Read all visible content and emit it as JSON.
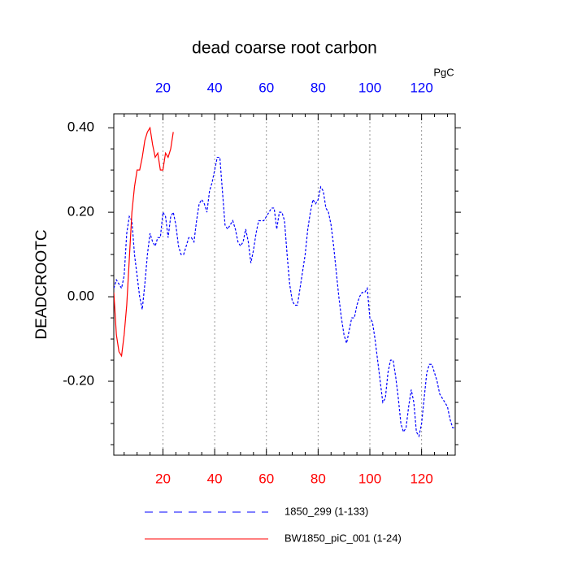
{
  "chart_data": {
    "type": "line",
    "title": "dead coarse root carbon",
    "y_label": "DEADCROOTC",
    "x2_label": "PgC",
    "xlim": [
      1,
      133
    ],
    "ylim": [
      -0.375,
      0.433
    ],
    "xticks": [
      20,
      40,
      60,
      80,
      100,
      120
    ],
    "x2ticks": [
      20,
      40,
      60,
      80,
      100,
      120
    ],
    "xminorticks": [
      5,
      10,
      15,
      25,
      30,
      35,
      45,
      50,
      55,
      65,
      70,
      75,
      85,
      90,
      95,
      105,
      110,
      115,
      125,
      130
    ],
    "yticks": [
      {
        "value": -0.2,
        "label": "-0.20"
      },
      {
        "value": 0,
        "label": "0.00"
      },
      {
        "value": 0.2,
        "label": "0.20"
      },
      {
        "value": 0.4,
        "label": "0.40"
      }
    ],
    "yminorticks": [
      -0.35,
      -0.3,
      -0.25,
      -0.15,
      -0.1,
      -0.05,
      0.05,
      0.1,
      0.15,
      0.25,
      0.3,
      0.35
    ],
    "xtick_color": "#ff0000",
    "x2tick_color": "#0000ff",
    "grid": true,
    "legend": "bottom",
    "series": [
      {
        "name": "1850_299 (1-133)",
        "color": "#0000ff",
        "style": "dashed",
        "x": [
          1,
          2,
          3,
          4,
          5,
          6,
          7,
          8,
          9,
          10,
          11,
          12,
          13,
          14,
          15,
          16,
          17,
          18,
          19,
          20,
          21,
          22,
          23,
          24,
          25,
          26,
          27,
          28,
          29,
          30,
          31,
          32,
          33,
          34,
          35,
          36,
          37,
          38,
          39,
          40,
          41,
          42,
          43,
          44,
          45,
          46,
          47,
          48,
          49,
          50,
          51,
          52,
          53,
          54,
          55,
          56,
          57,
          58,
          59,
          60,
          61,
          62,
          63,
          64,
          65,
          66,
          67,
          68,
          69,
          70,
          71,
          72,
          73,
          74,
          75,
          76,
          77,
          78,
          79,
          80,
          81,
          82,
          83,
          84,
          85,
          86,
          87,
          88,
          89,
          90,
          91,
          92,
          93,
          94,
          95,
          96,
          97,
          98,
          99,
          100,
          101,
          102,
          103,
          104,
          105,
          106,
          107,
          108,
          109,
          110,
          111,
          112,
          113,
          114,
          115,
          116,
          117,
          118,
          119,
          120,
          121,
          122,
          123,
          124,
          125,
          126,
          127,
          128,
          129,
          130,
          131,
          132,
          133
        ],
        "values": [
          0.02,
          0.04,
          0.03,
          0.02,
          0.05,
          0.15,
          0.19,
          0.18,
          0.1,
          0.05,
          0.0,
          -0.03,
          0.03,
          0.1,
          0.15,
          0.13,
          0.12,
          0.14,
          0.14,
          0.2,
          0.19,
          0.14,
          0.19,
          0.2,
          0.17,
          0.12,
          0.1,
          0.1,
          0.12,
          0.14,
          0.14,
          0.13,
          0.18,
          0.22,
          0.23,
          0.22,
          0.2,
          0.25,
          0.27,
          0.3,
          0.33,
          0.33,
          0.25,
          0.17,
          0.16,
          0.17,
          0.18,
          0.16,
          0.13,
          0.12,
          0.13,
          0.16,
          0.13,
          0.08,
          0.11,
          0.15,
          0.18,
          0.18,
          0.18,
          0.19,
          0.2,
          0.21,
          0.21,
          0.16,
          0.2,
          0.2,
          0.18,
          0.1,
          0.03,
          -0.01,
          -0.02,
          -0.02,
          0.02,
          0.06,
          0.1,
          0.16,
          0.2,
          0.23,
          0.22,
          0.23,
          0.26,
          0.25,
          0.21,
          0.2,
          0.17,
          0.12,
          0.06,
          0.0,
          -0.05,
          -0.09,
          -0.11,
          -0.08,
          -0.05,
          -0.05,
          -0.02,
          0.0,
          0.01,
          0.01,
          0.02,
          -0.05,
          -0.06,
          -0.1,
          -0.15,
          -0.2,
          -0.25,
          -0.24,
          -0.18,
          -0.15,
          -0.15,
          -0.19,
          -0.24,
          -0.3,
          -0.32,
          -0.31,
          -0.26,
          -0.22,
          -0.25,
          -0.32,
          -0.33,
          -0.3,
          -0.24,
          -0.18,
          -0.16,
          -0.16,
          -0.18,
          -0.2,
          -0.23,
          -0.24,
          -0.25,
          -0.26,
          -0.29,
          -0.31,
          -0.31
        ]
      },
      {
        "name": "BW1850_piC_001 (1-24)",
        "color": "#ff0000",
        "style": "solid",
        "x": [
          1,
          2,
          3,
          4,
          5,
          6,
          7,
          8,
          9,
          10,
          11,
          12,
          13,
          14,
          15,
          16,
          17,
          18,
          19,
          20,
          21,
          22,
          23,
          24
        ],
        "values": [
          0.01,
          -0.09,
          -0.13,
          -0.14,
          -0.09,
          -0.02,
          0.09,
          0.2,
          0.26,
          0.3,
          0.3,
          0.33,
          0.37,
          0.39,
          0.4,
          0.36,
          0.33,
          0.34,
          0.3,
          0.3,
          0.34,
          0.33,
          0.35,
          0.39
        ]
      }
    ]
  }
}
